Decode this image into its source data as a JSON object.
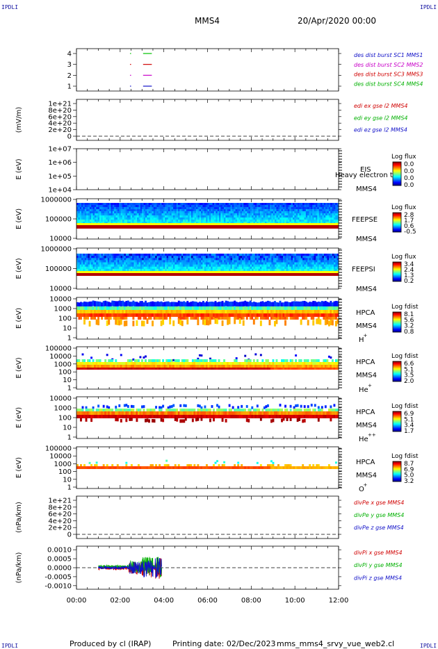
{
  "header": {
    "mission": "MMS4",
    "date_time": "20/Apr/2020 00:00",
    "corner_tl": "IPDLI",
    "corner_tr": "IPDLI",
    "corner_bl": "IPDLI",
    "corner_br": "IPDLI"
  },
  "footer": {
    "produced_by": "Produced by cl (IRAP)",
    "printing_date": "Printing date: 02/Dec/2023",
    "script": "mms_mms4_srvy_vue_web2.cl"
  },
  "x_axis": {
    "ticks": [
      "00:00",
      "02:00",
      "04:00",
      "06:00",
      "08:00",
      "10:00",
      "12:00"
    ],
    "range_hours": [
      0,
      12
    ]
  },
  "chart_data": [
    {
      "id": "burst",
      "type": "line",
      "yticks": [
        "1",
        "2",
        "3",
        "4"
      ],
      "legend": [
        {
          "text": "des dist burst SC1 MMS1",
          "color": "#1010c8"
        },
        {
          "text": "des dist burst SC2 MMS2",
          "color": "#c800c8"
        },
        {
          "text": "des dist burst SC3 MMS3",
          "color": "#d00000"
        },
        {
          "text": "des dist burst SC4 MMS4",
          "color": "#00b000"
        }
      ],
      "series": [
        {
          "level": 4,
          "color": "#00c000",
          "intervals": [
            [
              2.45,
              2.5
            ],
            [
              3.05,
              3.45
            ]
          ]
        },
        {
          "level": 3,
          "color": "#d00000",
          "intervals": [
            [
              2.45,
              2.5
            ],
            [
              3.05,
              3.45
            ]
          ]
        },
        {
          "level": 2,
          "color": "#c800c8",
          "intervals": [
            [
              2.45,
              2.5
            ],
            [
              3.05,
              3.45
            ]
          ]
        },
        {
          "level": 1,
          "color": "#1010c8",
          "intervals": [
            [
              2.45,
              2.5
            ],
            [
              3.05,
              3.45
            ]
          ]
        }
      ]
    },
    {
      "id": "edi",
      "type": "line",
      "ylabel": "(mV/m)",
      "yticks": [
        "0",
        "2e+20",
        "4e+20",
        "6e+20",
        "8e+20",
        "1e+21"
      ],
      "legend": [
        {
          "text": "edi ex gse l2 MMS4",
          "color": "#d00000"
        },
        {
          "text": "edi ey gse l2 MMS4",
          "color": "#00b000"
        },
        {
          "text": "edi ez gse l2 MMS4",
          "color": "#1010c8"
        }
      ],
      "zero_line": true
    },
    {
      "id": "eis",
      "type": "heatmap",
      "ylabel": "E (eV)",
      "yticks": [
        "1e+04",
        "1e+05",
        "1e+06",
        "1e+07"
      ],
      "labels": [
        "EIS",
        "Heavy electron tof",
        "MMS4"
      ],
      "colorbar": {
        "title": "Log flux",
        "ticks": [
          "0.0",
          "0.0",
          "0.0",
          "0.0"
        ]
      }
    },
    {
      "id": "feeps_e",
      "type": "heatmap",
      "ylabel": "E (eV)",
      "yticks": [
        "10000",
        "100000",
        "1000000"
      ],
      "labels": [
        "FEEPSE",
        "MMS4"
      ],
      "colorbar": {
        "title": "Log flux",
        "ticks": [
          "2.8",
          "1.7",
          "0.6",
          "-0.5"
        ]
      }
    },
    {
      "id": "feeps_i",
      "type": "heatmap",
      "ylabel": "E (eV)",
      "yticks": [
        "10000",
        "100000",
        "1000000"
      ],
      "labels": [
        "FEEPSI",
        "MMS4"
      ],
      "colorbar": {
        "title": "Log flux",
        "ticks": [
          "3.4",
          "2.4",
          "1.3",
          "0.2"
        ]
      }
    },
    {
      "id": "hpca_h",
      "type": "heatmap",
      "ylabel": "E (eV)",
      "yticks": [
        "1",
        "10",
        "100",
        "1000",
        "10000"
      ],
      "labels": [
        "HPCA",
        "MMS4",
        "H",
        "+"
      ],
      "colorbar": {
        "title": "Log fdist",
        "ticks": [
          "8.1",
          "5.6",
          "3.2",
          "0.8"
        ]
      }
    },
    {
      "id": "hpca_he",
      "type": "heatmap",
      "ylabel": "E (eV)",
      "yticks": [
        "1",
        "10",
        "100",
        "1000",
        "10000",
        "100000"
      ],
      "labels": [
        "HPCA",
        "MMS4",
        "He",
        "+"
      ],
      "colorbar": {
        "title": "Log fdist",
        "ticks": [
          "6.6",
          "5.1",
          "3.5",
          "2.0"
        ]
      }
    },
    {
      "id": "hpca_he2",
      "type": "heatmap",
      "ylabel": "E (eV)",
      "yticks": [
        "1",
        "10",
        "100",
        "1000",
        "10000"
      ],
      "labels": [
        "HPCA",
        "MMS4",
        "He",
        "++"
      ],
      "colorbar": {
        "title": "Log fdist",
        "ticks": [
          "6.9",
          "5.1",
          "3.4",
          "1.7"
        ]
      }
    },
    {
      "id": "hpca_o",
      "type": "heatmap",
      "ylabel": "E (eV)",
      "yticks": [
        "1",
        "10",
        "100",
        "1000",
        "10000",
        "100000"
      ],
      "labels": [
        "HPCA",
        "MMS4",
        "O",
        "+"
      ],
      "colorbar": {
        "title": "Log fdist",
        "ticks": [
          "8.7",
          "6.9",
          "5.0",
          "3.2"
        ]
      }
    },
    {
      "id": "divpe",
      "type": "line",
      "ylabel": "(nPa/km)",
      "yticks": [
        "0",
        "2e+20",
        "4e+20",
        "6e+20",
        "8e+20",
        "1e+21"
      ],
      "legend": [
        {
          "text": "divPe x gse MMS4",
          "color": "#d00000"
        },
        {
          "text": "divPe y gse MMS4",
          "color": "#00b000"
        },
        {
          "text": "divPe z gse MMS4",
          "color": "#1010c8"
        }
      ],
      "zero_line": true
    },
    {
      "id": "divpi",
      "type": "line",
      "ylabel": "(nPa/km)",
      "yticks": [
        "-0.0010",
        "-0.0005",
        "0.0000",
        "0.0005",
        "0.0010"
      ],
      "ylim": [
        -0.0012,
        0.0012
      ],
      "legend": [
        {
          "text": "divPi x gse MMS4",
          "color": "#d00000"
        },
        {
          "text": "divPi y gse MMS4",
          "color": "#00b000"
        },
        {
          "text": "divPi z gse MMS4",
          "color": "#1010c8"
        }
      ],
      "data_interval_hours": [
        1.0,
        3.9
      ],
      "zero_line": true
    }
  ]
}
